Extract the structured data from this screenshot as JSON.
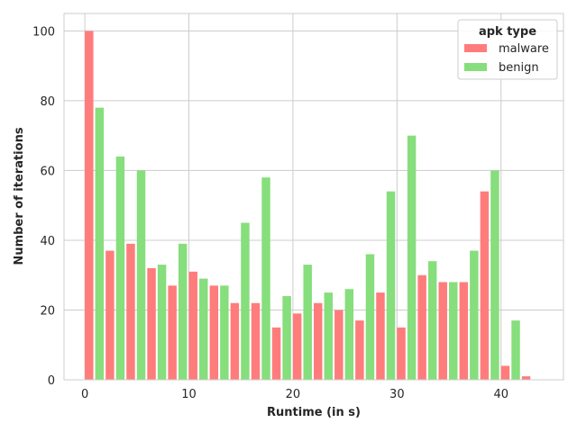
{
  "chart_data": {
    "type": "bar",
    "title": "",
    "xlabel": "Runtime (in s)",
    "ylabel": "Number of iterations",
    "xlim": [
      -2,
      46
    ],
    "ylim": [
      0,
      105
    ],
    "xticks": [
      0,
      10,
      20,
      30,
      40
    ],
    "yticks": [
      0,
      20,
      40,
      60,
      80,
      100
    ],
    "grid": true,
    "legend": {
      "title": "apk type",
      "placement": "top-right"
    },
    "bin_width": 2,
    "x": [
      0,
      2,
      4,
      6,
      8,
      10,
      12,
      14,
      16,
      18,
      20,
      22,
      24,
      26,
      28,
      30,
      32,
      34,
      36,
      38,
      40,
      42
    ],
    "series": [
      {
        "name": "malware",
        "color": "#ff7c7c",
        "values": [
          100,
          37,
          39,
          32,
          27,
          31,
          27,
          22,
          22,
          15,
          19,
          22,
          20,
          17,
          25,
          15,
          30,
          28,
          28,
          54,
          4,
          1
        ]
      },
      {
        "name": "benign",
        "color": "#86de7c",
        "values": [
          78,
          64,
          60,
          33,
          39,
          29,
          27,
          45,
          58,
          24,
          33,
          25,
          26,
          36,
          54,
          70,
          34,
          28,
          37,
          60,
          17,
          0
        ]
      }
    ]
  }
}
